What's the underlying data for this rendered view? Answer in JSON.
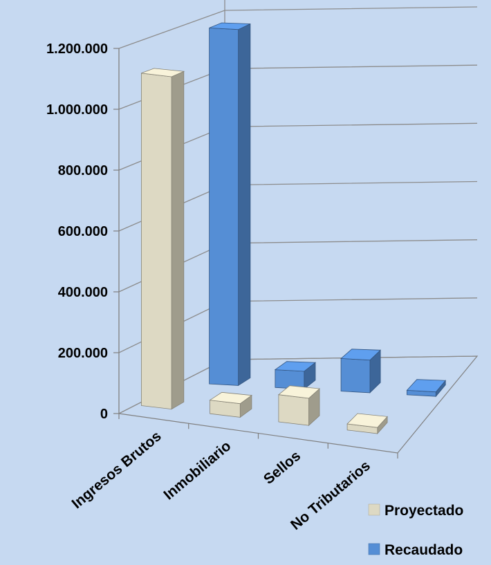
{
  "chart_data": {
    "type": "bar",
    "categories": [
      "Ingresos Brutos",
      "Inmobiliario",
      "Sellos",
      "No Tributarios"
    ],
    "series": [
      {
        "name": "Proyectado",
        "values": [
          1100000,
          45000,
          90000,
          20000
        ],
        "color": "#ddd9c3"
      },
      {
        "name": "Recaudado",
        "values": [
          1200000,
          60000,
          110000,
          15000
        ],
        "color": "#558ed5"
      }
    ],
    "y_ticks": [
      "0",
      "200.000",
      "400.000",
      "600.000",
      "800.000",
      "1.000.000",
      "1.200.000"
    ],
    "ylim": [
      0,
      1200000
    ],
    "legend_position": "bottom-right",
    "grid": true,
    "style": "3d-column",
    "background_color": "#c6d9f1"
  }
}
